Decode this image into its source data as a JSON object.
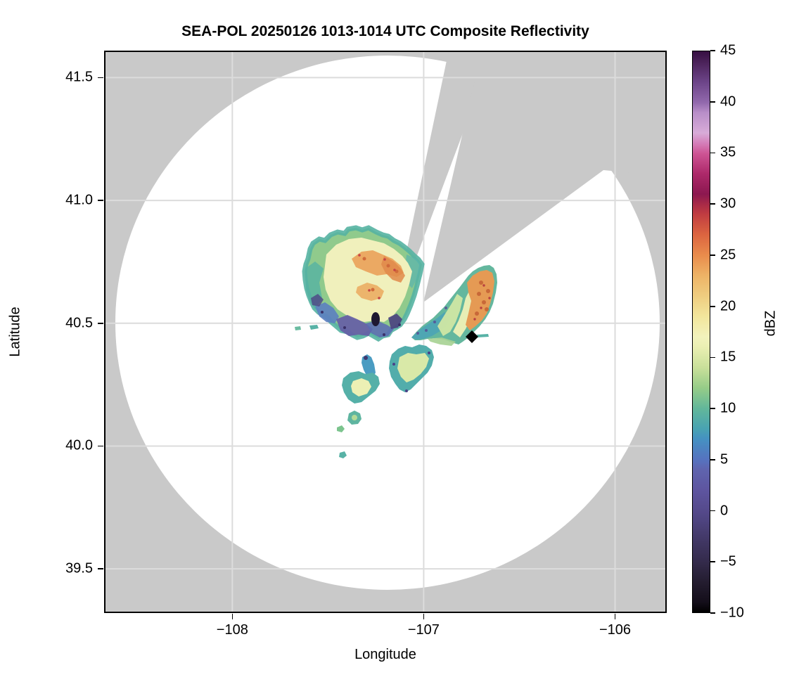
{
  "chart_data": {
    "type": "heatmap",
    "subtype": "radar-composite-reflectivity-ppi",
    "title": "SEA-POL 20250126 1013-1014 UTC Composite Reflectivity",
    "xlabel": "Longitude",
    "ylabel": "Latitude",
    "grid": true,
    "grid_color": "#dcdcdc",
    "background_outside_scan": "#c9c9c9",
    "scan_area_color": "#ffffff",
    "x_axis": {
      "lim": [
        -108.67,
        -105.73
      ],
      "ticks": [
        {
          "value": -108,
          "label": "−108"
        },
        {
          "value": -107,
          "label": "−107"
        },
        {
          "value": -106,
          "label": "−106"
        }
      ]
    },
    "y_axis": {
      "lim": [
        39.32,
        41.61
      ],
      "ticks": [
        {
          "value": 41.5,
          "label": "41.5"
        },
        {
          "value": 41.0,
          "label": "41.0"
        },
        {
          "value": 40.5,
          "label": "40.5"
        },
        {
          "value": 40.0,
          "label": "40.0"
        },
        {
          "value": 39.5,
          "label": "39.5"
        }
      ]
    },
    "colorbar": {
      "label": "dBZ",
      "lim": [
        -10,
        45
      ],
      "ticks": [
        {
          "value": 45,
          "label": "45"
        },
        {
          "value": 40,
          "label": "40"
        },
        {
          "value": 35,
          "label": "35"
        },
        {
          "value": 30,
          "label": "30"
        },
        {
          "value": 25,
          "label": "25"
        },
        {
          "value": 20,
          "label": "20"
        },
        {
          "value": 15,
          "label": "15"
        },
        {
          "value": 10,
          "label": "10"
        },
        {
          "value": 5,
          "label": "5"
        },
        {
          "value": 0,
          "label": "0"
        },
        {
          "value": -5,
          "label": "−5"
        },
        {
          "value": -10,
          "label": "−10"
        }
      ],
      "stops": [
        {
          "v": -10,
          "c": "#000000"
        },
        {
          "v": -9,
          "c": "#140e1a"
        },
        {
          "v": -7,
          "c": "#241d30"
        },
        {
          "v": -5,
          "c": "#342b4c"
        },
        {
          "v": -3,
          "c": "#413764"
        },
        {
          "v": -1,
          "c": "#4e4480"
        },
        {
          "v": 0,
          "c": "#554a8c"
        },
        {
          "v": 2,
          "c": "#5e55a0"
        },
        {
          "v": 4,
          "c": "#5f64ae"
        },
        {
          "v": 5,
          "c": "#5573c0"
        },
        {
          "v": 7,
          "c": "#4591c2"
        },
        {
          "v": 8,
          "c": "#49a3b2"
        },
        {
          "v": 10,
          "c": "#62b79a"
        },
        {
          "v": 12,
          "c": "#96cc88"
        },
        {
          "v": 14,
          "c": "#c9e09a"
        },
        {
          "v": 16,
          "c": "#eaefb2"
        },
        {
          "v": 17,
          "c": "#f2f2bc"
        },
        {
          "v": 19,
          "c": "#f2e69c"
        },
        {
          "v": 21,
          "c": "#efcd80"
        },
        {
          "v": 23,
          "c": "#edb366"
        },
        {
          "v": 25,
          "c": "#e98c4c"
        },
        {
          "v": 27,
          "c": "#dc6540"
        },
        {
          "v": 29,
          "c": "#c13d41"
        },
        {
          "v": 30,
          "c": "#a82a47"
        },
        {
          "v": 31,
          "c": "#8c1850"
        },
        {
          "v": 33,
          "c": "#ad296a"
        },
        {
          "v": 35,
          "c": "#ce5595"
        },
        {
          "v": 36,
          "c": "#d57fba"
        },
        {
          "v": 37,
          "c": "#d8abd8"
        },
        {
          "v": 39,
          "c": "#b88ec8"
        },
        {
          "v": 40,
          "c": "#9168ac"
        },
        {
          "v": 42,
          "c": "#6c4488"
        },
        {
          "v": 44,
          "c": "#4a2158"
        },
        {
          "v": 45,
          "c": "#360f42"
        }
      ]
    },
    "radar": {
      "center_lon": -107.17,
      "center_lat": 40.5,
      "scan_radius_deg_lon": 1.42,
      "scan_radius_deg_lat": 1.09,
      "blocked_sectors": [
        {
          "description": "narrow wedge from radar toward north-northeast reaching top of plot"
        },
        {
          "description": "wide wedge from radar toward east-northeast, lower edge reaching scan rim near (-106.05, 40.81)"
        }
      ]
    },
    "markers": [
      {
        "type": "diamond",
        "lon": -106.75,
        "lat": 40.45,
        "color": "#000000"
      }
    ],
    "echo_features": [
      {
        "region": "northwest of radar",
        "lon_range": [
          -107.65,
          -107.15
        ],
        "lat_range": [
          40.55,
          40.92
        ],
        "dbz_range": [
          0,
          30
        ],
        "notes": "large stratiform area; pale-yellow 15-18 dBZ core, orange 22-28 dBZ streaks, blue-purple -2 to 5 dBZ mottled southern edge, small near-black cell"
      },
      {
        "region": "east of radar",
        "lon_range": [
          -107.15,
          -106.65
        ],
        "lat_range": [
          40.45,
          40.75
        ],
        "dbz_range": [
          5,
          28
        ],
        "notes": "teal-green echo with orange 22-28 dBZ core on east side, clipped by blocked wide wedge"
      },
      {
        "region": "south of radar",
        "lon_range": [
          -107.45,
          -106.95
        ],
        "lat_range": [
          40.05,
          40.45
        ],
        "dbz_range": [
          0,
          17
        ],
        "notes": "scattered teal/green cells with small yellow-green cores, isolated specks down to 40.05N"
      }
    ]
  }
}
